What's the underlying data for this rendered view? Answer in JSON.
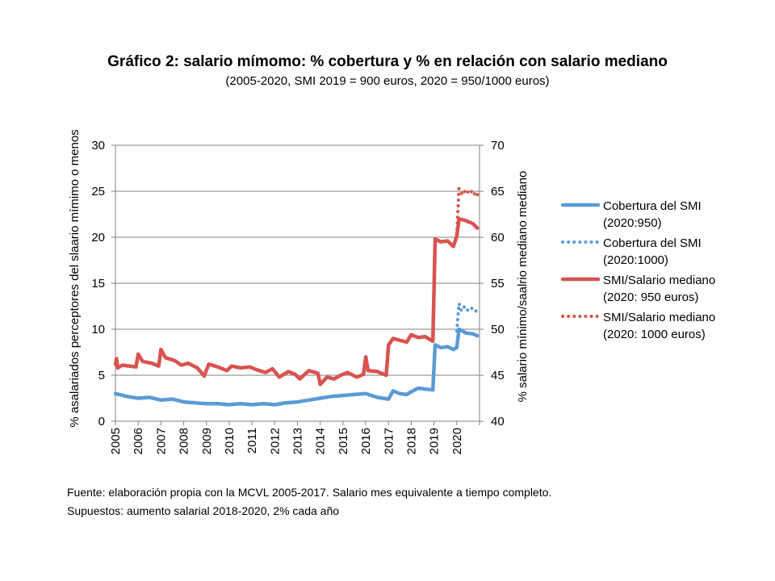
{
  "chart_data": {
    "type": "line",
    "title": "Gráfico 2: salario mímomo: % cobertura y % en relación con salario mediano",
    "subtitle": "(2005-2020, SMI 2019 = 900 euros, 2020 = 950/1000 euros)",
    "y_left": {
      "label": "% asalariados perceptores del slaario mímimo o menos",
      "range": [
        0,
        30
      ],
      "ticks": [
        0,
        5,
        10,
        15,
        20,
        25,
        30
      ]
    },
    "y_right": {
      "label": "% salario mínimo/saalrio mediano mediano",
      "range": [
        40,
        70
      ],
      "ticks": [
        40,
        45,
        50,
        55,
        60,
        65,
        70
      ]
    },
    "x": {
      "categories": [
        "2005",
        "2006",
        "2007",
        "2008",
        "2009",
        "2010",
        "2011",
        "2012",
        "2013",
        "2014",
        "2015",
        "2016",
        "2017",
        "2018",
        "2019",
        "2020"
      ],
      "range": [
        2005,
        2021
      ]
    },
    "series": [
      {
        "name": "Cobertura del SMI (2020:950)",
        "line1": "Cobertura del SMI",
        "line2": "(2020:950)",
        "axis": "left",
        "color": "#5b9bd5",
        "style": "solid",
        "points": [
          [
            2005.0,
            3.0
          ],
          [
            2005.5,
            2.7
          ],
          [
            2006.0,
            2.5
          ],
          [
            2006.5,
            2.6
          ],
          [
            2007.0,
            2.3
          ],
          [
            2007.5,
            2.4
          ],
          [
            2008.0,
            2.1
          ],
          [
            2008.5,
            2.0
          ],
          [
            2009.0,
            1.9
          ],
          [
            2009.5,
            1.9
          ],
          [
            2010.0,
            1.8
          ],
          [
            2010.5,
            1.9
          ],
          [
            2011.0,
            1.8
          ],
          [
            2011.5,
            1.9
          ],
          [
            2012.0,
            1.8
          ],
          [
            2012.5,
            2.0
          ],
          [
            2013.0,
            2.1
          ],
          [
            2013.5,
            2.3
          ],
          [
            2014.0,
            2.5
          ],
          [
            2014.5,
            2.7
          ],
          [
            2015.0,
            2.8
          ],
          [
            2015.5,
            2.9
          ],
          [
            2016.0,
            3.0
          ],
          [
            2016.5,
            2.6
          ],
          [
            2017.0,
            2.4
          ],
          [
            2017.2,
            3.3
          ],
          [
            2017.5,
            3.0
          ],
          [
            2017.8,
            2.9
          ],
          [
            2018.0,
            3.2
          ],
          [
            2018.3,
            3.6
          ],
          [
            2018.6,
            3.5
          ],
          [
            2018.95,
            3.4
          ],
          [
            2019.05,
            8.3
          ],
          [
            2019.3,
            8.0
          ],
          [
            2019.6,
            8.1
          ],
          [
            2019.85,
            7.8
          ],
          [
            2020.0,
            8.0
          ],
          [
            2020.1,
            10.0
          ],
          [
            2020.4,
            9.6
          ],
          [
            2020.7,
            9.5
          ],
          [
            2020.9,
            9.3
          ]
        ]
      },
      {
        "name": "Cobertura del SMI (2020:1000)",
        "line1": "Cobertura del SMI",
        "line2": "(2020:1000)",
        "axis": "left",
        "color": "#5b9bd5",
        "style": "dotted",
        "points": [
          [
            2020.0,
            9.8
          ],
          [
            2020.1,
            12.8
          ],
          [
            2020.2,
            12.0
          ],
          [
            2020.35,
            12.5
          ],
          [
            2020.5,
            12.0
          ],
          [
            2020.65,
            12.3
          ],
          [
            2020.8,
            11.9
          ],
          [
            2020.95,
            12.2
          ]
        ]
      },
      {
        "name": "SMI/Salario mediano (2020: 950 euros)",
        "line1": "SMI/Salario mediano",
        "line2": "(2020: 950 euros)",
        "axis": "right",
        "color": "#d9534f",
        "style": "solid",
        "points": [
          [
            2005.0,
            46.2
          ],
          [
            2005.05,
            46.8
          ],
          [
            2005.1,
            45.8
          ],
          [
            2005.3,
            46.1
          ],
          [
            2005.6,
            46.0
          ],
          [
            2005.9,
            45.9
          ],
          [
            2006.0,
            47.3
          ],
          [
            2006.2,
            46.5
          ],
          [
            2006.6,
            46.3
          ],
          [
            2006.9,
            46.0
          ],
          [
            2007.0,
            47.8
          ],
          [
            2007.2,
            46.9
          ],
          [
            2007.6,
            46.6
          ],
          [
            2007.9,
            46.1
          ],
          [
            2008.2,
            46.3
          ],
          [
            2008.6,
            45.8
          ],
          [
            2008.9,
            44.9
          ],
          [
            2009.1,
            46.2
          ],
          [
            2009.5,
            45.9
          ],
          [
            2009.9,
            45.5
          ],
          [
            2010.1,
            46.0
          ],
          [
            2010.5,
            45.8
          ],
          [
            2010.9,
            45.9
          ],
          [
            2011.2,
            45.6
          ],
          [
            2011.6,
            45.3
          ],
          [
            2011.9,
            45.7
          ],
          [
            2012.2,
            44.8
          ],
          [
            2012.6,
            45.4
          ],
          [
            2012.9,
            45.1
          ],
          [
            2013.1,
            44.6
          ],
          [
            2013.5,
            45.5
          ],
          [
            2013.9,
            45.2
          ],
          [
            2014.0,
            44.0
          ],
          [
            2014.3,
            44.8
          ],
          [
            2014.6,
            44.6
          ],
          [
            2014.9,
            45.0
          ],
          [
            2015.2,
            45.3
          ],
          [
            2015.6,
            44.8
          ],
          [
            2015.9,
            45.1
          ],
          [
            2016.0,
            47.0
          ],
          [
            2016.1,
            45.5
          ],
          [
            2016.5,
            45.4
          ],
          [
            2016.9,
            45.0
          ],
          [
            2017.0,
            48.3
          ],
          [
            2017.2,
            49.0
          ],
          [
            2017.5,
            48.8
          ],
          [
            2017.8,
            48.6
          ],
          [
            2018.0,
            49.4
          ],
          [
            2018.3,
            49.1
          ],
          [
            2018.6,
            49.2
          ],
          [
            2018.95,
            48.7
          ],
          [
            2019.05,
            59.8
          ],
          [
            2019.3,
            59.5
          ],
          [
            2019.6,
            59.6
          ],
          [
            2019.85,
            59.0
          ],
          [
            2020.0,
            60.1
          ],
          [
            2020.1,
            62.0
          ],
          [
            2020.4,
            61.8
          ],
          [
            2020.7,
            61.5
          ],
          [
            2020.9,
            61.0
          ]
        ]
      },
      {
        "name": "SMI/Salario mediano (2020: 1000 euros)",
        "line1": "SMI/Salario mediano",
        "line2": "(2020: 1000 euros)",
        "axis": "right",
        "color": "#d9534f",
        "style": "dotted",
        "points": [
          [
            2020.0,
            60.3
          ],
          [
            2020.1,
            65.3
          ],
          [
            2020.25,
            64.6
          ],
          [
            2020.4,
            65.2
          ],
          [
            2020.55,
            64.7
          ],
          [
            2020.7,
            65.1
          ],
          [
            2020.85,
            64.4
          ],
          [
            2020.95,
            64.8
          ]
        ]
      }
    ],
    "legend_position": "right"
  },
  "footnote": {
    "line1": "Fuente: elaboración propia con la MCVL 2005-2017. Salario mes equivalente a tiempo completo.",
    "line2": "Supuestos: aumento salarial 2018-2020, 2% cada año"
  }
}
